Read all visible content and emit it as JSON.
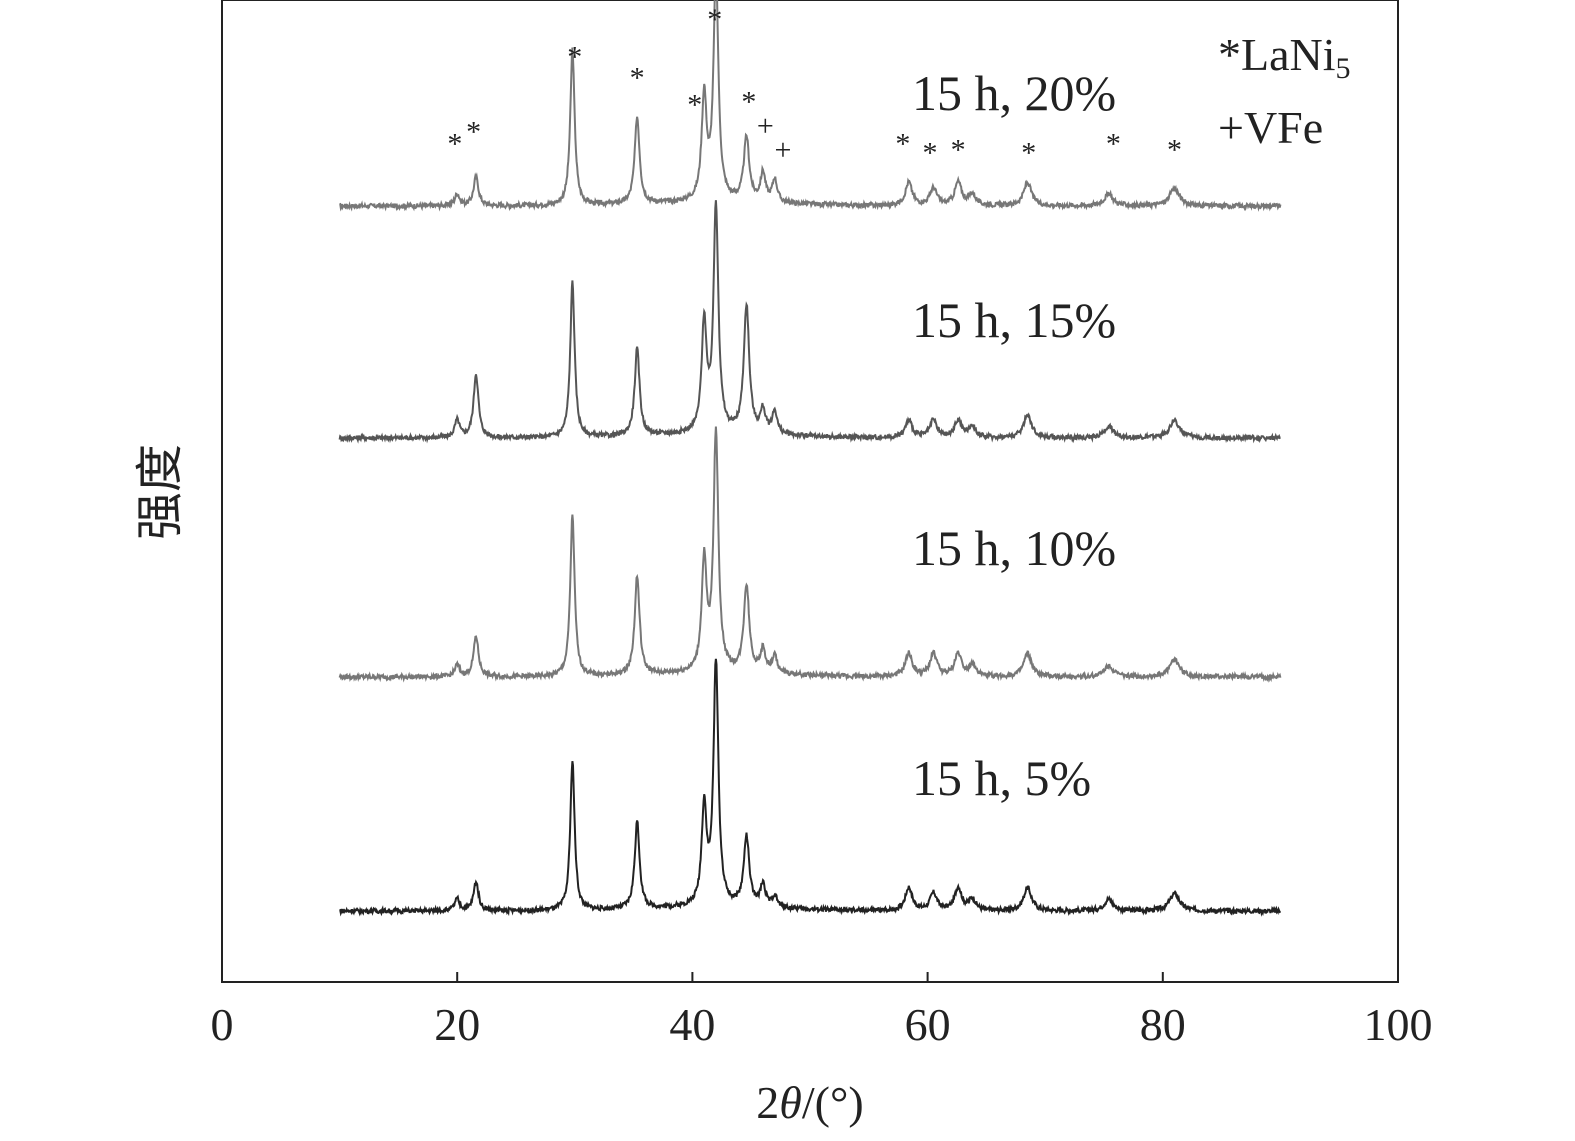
{
  "chart_data": {
    "type": "line",
    "xlabel_prefix": "2",
    "xlabel_theta": "θ",
    "xlabel_suffix": "/(°)",
    "ylabel": "强度",
    "xlim": [
      0,
      100
    ],
    "x_ticks": [
      0,
      20,
      40,
      60,
      80,
      100
    ],
    "x_tick_labels": [
      "0",
      "20",
      "40",
      "60",
      "80",
      "100"
    ],
    "y_ticks_shown": false,
    "grid": false,
    "x_range_data": [
      10,
      90
    ],
    "peaks": [
      {
        "x": 20.0,
        "w": 0.25
      },
      {
        "x": 21.6,
        "w": 0.25
      },
      {
        "x": 29.8,
        "w": 0.22
      },
      {
        "x": 35.3,
        "w": 0.25
      },
      {
        "x": 41.0,
        "w": 0.25
      },
      {
        "x": 42.0,
        "w": 0.25
      },
      {
        "x": 44.6,
        "w": 0.28
      },
      {
        "x": 46.0,
        "w": 0.25
      },
      {
        "x": 47.0,
        "w": 0.25
      },
      {
        "x": 58.4,
        "w": 0.35
      },
      {
        "x": 60.5,
        "w": 0.35
      },
      {
        "x": 62.6,
        "w": 0.35
      },
      {
        "x": 63.8,
        "w": 0.35
      },
      {
        "x": 68.5,
        "w": 0.4
      },
      {
        "x": 75.4,
        "w": 0.45
      },
      {
        "x": 81.0,
        "w": 0.5
      }
    ],
    "series": [
      {
        "name": "15 h, 20%",
        "label_name": "15 h, 20%",
        "color": "#777777",
        "baseline": 0.05,
        "heights": [
          0.02,
          0.05,
          0.27,
          0.15,
          0.18,
          0.39,
          0.11,
          0.05,
          0.04,
          0.04,
          0.03,
          0.04,
          0.02,
          0.04,
          0.02,
          0.03
        ]
      },
      {
        "name": "15 h, 15%",
        "label_name": "15 h, 15%",
        "color": "#555555",
        "baseline": 0.05,
        "heights": [
          0.03,
          0.11,
          0.27,
          0.15,
          0.19,
          0.39,
          0.22,
          0.04,
          0.04,
          0.03,
          0.03,
          0.03,
          0.02,
          0.04,
          0.02,
          0.03
        ]
      },
      {
        "name": "15 h, 10%",
        "label_name": "15 h, 10%",
        "color": "#777777",
        "baseline": 0.05,
        "heights": [
          0.02,
          0.07,
          0.28,
          0.17,
          0.19,
          0.41,
          0.15,
          0.04,
          0.03,
          0.04,
          0.04,
          0.04,
          0.02,
          0.04,
          0.02,
          0.03
        ]
      },
      {
        "name": "15 h, 5%",
        "label_name": "15 h, 5%",
        "color": "#222222",
        "baseline": 0.05,
        "heights": [
          0.02,
          0.05,
          0.26,
          0.15,
          0.17,
          0.42,
          0.12,
          0.04,
          0.02,
          0.04,
          0.03,
          0.04,
          0.02,
          0.04,
          0.02,
          0.03
        ]
      }
    ],
    "phase_markers": [
      {
        "symbol": "*",
        "x": 19.8,
        "level": 0.35
      },
      {
        "symbol": "*",
        "x": 21.4,
        "level": 0.43
      },
      {
        "symbol": "*",
        "x": 30.0,
        "level": 0.93
      },
      {
        "symbol": "*",
        "x": 35.3,
        "level": 0.79
      },
      {
        "symbol": "*",
        "x": 40.2,
        "level": 0.61
      },
      {
        "symbol": "*",
        "x": 41.9,
        "level": 1.18
      },
      {
        "symbol": "*",
        "x": 44.8,
        "level": 0.63
      },
      {
        "symbol": "+",
        "x": 46.2,
        "level": 0.47
      },
      {
        "symbol": "+",
        "x": 47.7,
        "level": 0.31
      },
      {
        "symbol": "*",
        "x": 57.9,
        "level": 0.35
      },
      {
        "symbol": "*",
        "x": 60.2,
        "level": 0.29
      },
      {
        "symbol": "*",
        "x": 62.6,
        "level": 0.31
      },
      {
        "symbol": "*",
        "x": 68.6,
        "level": 0.29
      },
      {
        "symbol": "*",
        "x": 75.8,
        "level": 0.35
      },
      {
        "symbol": "*",
        "x": 81.0,
        "level": 0.31
      }
    ],
    "legend": {
      "placement": "top-right",
      "line1_symbol": "*",
      "line1_text": "LaNi",
      "line1_sub": "5",
      "line2_symbol": "+",
      "line2_text": "VFe"
    }
  }
}
